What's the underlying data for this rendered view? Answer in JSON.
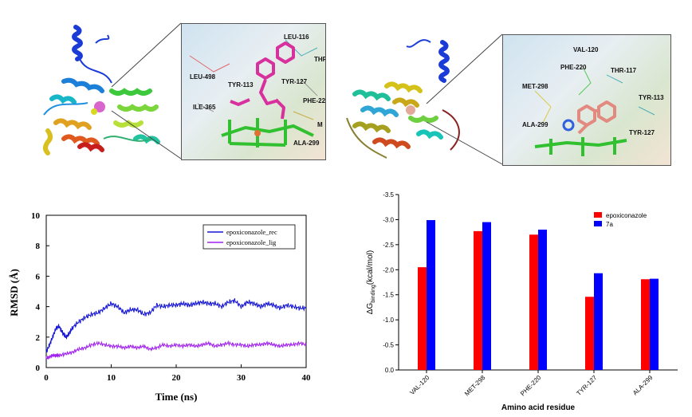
{
  "panel_a": {
    "residues": [
      "LEU-116",
      "THR",
      "LEU-498",
      "TYR-113",
      "TYR-127",
      "ILE-365",
      "PHE-22",
      "M",
      "ALA-299"
    ]
  },
  "panel_b": {
    "residues": [
      "VAL-120",
      "PHE-220",
      "THR-117",
      "MET-298",
      "TYR-113",
      "ALA-299",
      "TYR-127"
    ]
  },
  "chart_data": [
    {
      "type": "line",
      "xlabel": "Time (ns)",
      "ylabel": "RMSD (Å)",
      "xlim": [
        0,
        40
      ],
      "ylim": [
        0,
        10
      ],
      "xticks": [
        "0",
        "10",
        "20",
        "30",
        "40"
      ],
      "yticks": [
        "0",
        "2",
        "4",
        "6",
        "8",
        "10"
      ],
      "legend_position": "top-right",
      "series": [
        {
          "name": "epoxiconazole_rec",
          "color": "#1515d6",
          "x": [
            0,
            0.5,
            1,
            1.5,
            2,
            2.5,
            3,
            3.5,
            4,
            5,
            6,
            7,
            8,
            9,
            10,
            11,
            12,
            13,
            14,
            15,
            16,
            17,
            18,
            19,
            20,
            21,
            22,
            23,
            24,
            25,
            26,
            27,
            28,
            29,
            30,
            31,
            32,
            33,
            34,
            35,
            36,
            37,
            38,
            39,
            40
          ],
          "y": [
            1.0,
            1.5,
            2.0,
            2.6,
            2.7,
            2.3,
            2.0,
            2.2,
            2.6,
            3.0,
            3.3,
            3.5,
            3.6,
            3.9,
            4.2,
            4.0,
            3.6,
            3.8,
            3.8,
            3.5,
            3.6,
            4.1,
            4.0,
            4.1,
            4.1,
            4.2,
            4.1,
            4.2,
            4.3,
            4.2,
            4.2,
            4.0,
            4.3,
            4.4,
            4.0,
            4.3,
            4.2,
            4.0,
            4.2,
            4.1,
            3.9,
            4.1,
            4.0,
            3.9,
            3.9
          ]
        },
        {
          "name": "epoxiconazole_lig",
          "color": "#a020f0",
          "x": [
            0,
            0.5,
            1,
            1.5,
            2,
            3,
            4,
            5,
            6,
            7,
            8,
            9,
            10,
            11,
            12,
            13,
            14,
            15,
            16,
            17,
            18,
            19,
            20,
            21,
            22,
            23,
            24,
            25,
            26,
            27,
            28,
            29,
            30,
            31,
            32,
            33,
            34,
            35,
            36,
            37,
            38,
            39,
            40
          ],
          "y": [
            0.6,
            0.7,
            0.8,
            0.8,
            0.8,
            0.9,
            1.0,
            1.2,
            1.3,
            1.5,
            1.6,
            1.5,
            1.4,
            1.4,
            1.3,
            1.4,
            1.3,
            1.4,
            1.2,
            1.3,
            1.5,
            1.4,
            1.5,
            1.4,
            1.5,
            1.4,
            1.5,
            1.6,
            1.4,
            1.5,
            1.6,
            1.5,
            1.5,
            1.4,
            1.5,
            1.5,
            1.6,
            1.5,
            1.4,
            1.5,
            1.5,
            1.6,
            1.5
          ]
        }
      ]
    },
    {
      "type": "bar",
      "xlabel": "Amino acid residue",
      "ylabel": "ΔG binding (kcal/mol)",
      "ylabel_main": "ΔG",
      "ylabel_sub": "binding",
      "ylabel_tail": "(kcal/mol)",
      "ylim": [
        0.0,
        -3.5
      ],
      "yticks": [
        "-3.5",
        "-3.0",
        "-2.5",
        "-2.0",
        "-1.5",
        "-1.0",
        "-0.5",
        "0.0"
      ],
      "legend_position": "top-right",
      "categories": [
        "VAL-120",
        "MET-298",
        "PHE-220",
        "TYR-127",
        "ALA-299"
      ],
      "series": [
        {
          "name": "epoxiconazole",
          "color": "#ff0000",
          "values": [
            -2.05,
            -2.77,
            -2.7,
            -1.46,
            -1.81
          ]
        },
        {
          "name": "7a",
          "color": "#0000ff",
          "values": [
            -2.99,
            -2.95,
            -2.8,
            -1.93,
            -1.82
          ]
        }
      ]
    }
  ]
}
